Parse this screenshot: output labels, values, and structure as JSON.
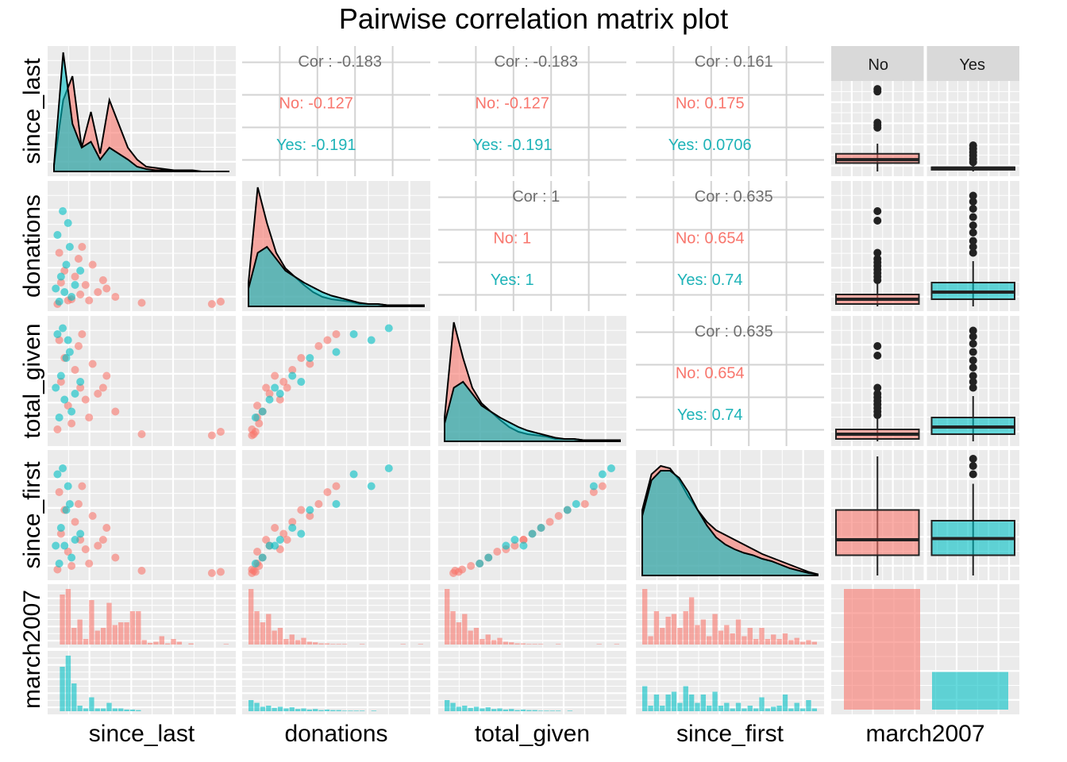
{
  "title": "Pairwise correlation matrix plot",
  "variables": [
    "since_last",
    "donations",
    "total_given",
    "since_first",
    "march2007"
  ],
  "colors": {
    "No": "#F8766D",
    "Yes": "#00BFC4",
    "panel_bg": "#EBEBEB",
    "grid": "#FFFFFF",
    "strip_bg": "#D9D9D9",
    "cor_text": "#6e6e6e"
  },
  "chart_data": {
    "type": "scatter",
    "title": "Pairwise correlation matrix plot",
    "groups": [
      "No",
      "Yes"
    ],
    "correlations": [
      {
        "row": "since_last",
        "col": "donations",
        "overall": "Cor : -0.183",
        "No": "No: -0.127",
        "Yes": "Yes: -0.191"
      },
      {
        "row": "since_last",
        "col": "total_given",
        "overall": "Cor : -0.183",
        "No": "No: -0.127",
        "Yes": "Yes: -0.191"
      },
      {
        "row": "since_last",
        "col": "since_first",
        "overall": "Cor : 0.161",
        "No": "No: 0.175",
        "Yes": "Yes: 0.0706"
      },
      {
        "row": "donations",
        "col": "total_given",
        "overall": "Cor : 1",
        "No": "No: 1",
        "Yes": "Yes: 1"
      },
      {
        "row": "donations",
        "col": "since_first",
        "overall": "Cor : 0.635",
        "No": "No: 0.654",
        "Yes": "Yes: 0.74"
      },
      {
        "row": "total_given",
        "col": "since_first",
        "overall": "Cor : 0.635",
        "No": "No: 0.654",
        "Yes": "Yes: 0.74"
      }
    ],
    "march2007_counts": {
      "No": 570,
      "Yes": 178
    },
    "boxplot_strip_labels": [
      "No",
      "Yes"
    ],
    "boxplots": {
      "since_last": {
        "No": {
          "q1": 0.1,
          "median": 0.14,
          "q3": 0.21,
          "whisker_low": 0.0,
          "whisker_high": 0.33,
          "outliers": [
            0.52,
            0.55,
            0.58,
            0.95,
            0.98
          ]
        },
        "Yes": {
          "q1": 0.02,
          "median": 0.04,
          "q3": 0.05,
          "whisker_low": 0.0,
          "whisker_high": 0.08,
          "outliers": [
            0.11,
            0.15,
            0.19,
            0.23,
            0.27,
            0.31
          ]
        }
      },
      "donations": {
        "No": {
          "q1": 0.02,
          "median": 0.06,
          "q3": 0.1,
          "whisker_low": 0.0,
          "whisker_high": 0.2,
          "outliers": [
            0.22,
            0.25,
            0.28,
            0.31,
            0.34,
            0.37,
            0.4,
            0.45,
            0.72,
            0.8
          ]
        },
        "Yes": {
          "q1": 0.06,
          "median": 0.12,
          "q3": 0.2,
          "whisker_low": 0.0,
          "whisker_high": 0.38,
          "outliers": [
            0.45,
            0.5,
            0.55,
            0.62,
            0.68,
            0.75,
            0.82,
            0.88,
            0.93
          ]
        }
      },
      "total_given": {
        "No": {
          "q1": 0.02,
          "median": 0.06,
          "q3": 0.1,
          "whisker_low": 0.0,
          "whisker_high": 0.2,
          "outliers": [
            0.22,
            0.25,
            0.28,
            0.31,
            0.34,
            0.37,
            0.4,
            0.45,
            0.72,
            0.8
          ]
        },
        "Yes": {
          "q1": 0.06,
          "median": 0.12,
          "q3": 0.2,
          "whisker_low": 0.0,
          "whisker_high": 0.38,
          "outliers": [
            0.45,
            0.5,
            0.55,
            0.62,
            0.68,
            0.75,
            0.82,
            0.88,
            0.93
          ]
        }
      },
      "since_first": {
        "No": {
          "q1": 0.17,
          "median": 0.3,
          "q3": 0.55,
          "whisker_low": 0.0,
          "whisker_high": 1.0,
          "outliers": []
        },
        "Yes": {
          "q1": 0.17,
          "median": 0.31,
          "q3": 0.46,
          "whisker_low": 0.0,
          "whisker_high": 0.77,
          "outliers": [
            0.85,
            0.92,
            0.98
          ]
        }
      }
    },
    "histograms": {
      "since_last": {
        "No": [
          0,
          0.9,
          1.0,
          0.3,
          0.45,
          0.1,
          0.8,
          0.25,
          0.3,
          0.75,
          0.35,
          0.4,
          0.4,
          0.6,
          0.6,
          0.08,
          0.03,
          0.05,
          0.15,
          0.02,
          0.1,
          0.05,
          0,
          0.02,
          0,
          0,
          0,
          0,
          0,
          0.01
        ],
        "Yes": [
          0,
          0.8,
          1.0,
          0.5,
          0.1,
          0.05,
          0.25,
          0.05,
          0.05,
          0.15,
          0.05,
          0.05,
          0.03,
          0.03,
          0.02,
          0,
          0,
          0,
          0,
          0,
          0,
          0,
          0,
          0,
          0,
          0,
          0,
          0,
          0,
          0
        ]
      },
      "donations": {
        "No": [
          1.0,
          0.6,
          0.4,
          0.55,
          0.25,
          0.3,
          0.1,
          0.18,
          0.08,
          0.12,
          0.05,
          0.04,
          0.02,
          0.02,
          0.01,
          0.01,
          0.01,
          0,
          0,
          0.01,
          0,
          0,
          0,
          0,
          0,
          0,
          0.01,
          0,
          0,
          0.01
        ],
        "Yes": [
          0.2,
          0.15,
          0.08,
          0.1,
          0.06,
          0.08,
          0.05,
          0.07,
          0.04,
          0.05,
          0.03,
          0.04,
          0.02,
          0.03,
          0.02,
          0.02,
          0.01,
          0.01,
          0.01,
          0.01,
          0,
          0.01,
          0,
          0,
          0,
          0,
          0,
          0,
          0,
          0
        ]
      },
      "total_given": {
        "No": [
          1.0,
          0.6,
          0.4,
          0.55,
          0.25,
          0.3,
          0.1,
          0.18,
          0.08,
          0.12,
          0.05,
          0.04,
          0.02,
          0.02,
          0.01,
          0.01,
          0.01,
          0,
          0,
          0.01,
          0,
          0,
          0,
          0,
          0,
          0,
          0.01,
          0,
          0,
          0.01
        ],
        "Yes": [
          0.2,
          0.15,
          0.08,
          0.1,
          0.06,
          0.08,
          0.05,
          0.07,
          0.04,
          0.05,
          0.03,
          0.04,
          0.02,
          0.03,
          0.02,
          0.02,
          0.01,
          0.01,
          0.01,
          0.01,
          0,
          0.01,
          0,
          0,
          0,
          0,
          0,
          0,
          0,
          0
        ]
      },
      "since_first": {
        "No": [
          1.0,
          0.15,
          0.6,
          0.3,
          0.5,
          0.55,
          0.3,
          0.6,
          0.85,
          0.35,
          0.45,
          0.15,
          0.55,
          0.25,
          0.35,
          0.2,
          0.45,
          0.15,
          0.3,
          0.1,
          0.3,
          0.1,
          0.18,
          0.1,
          0.2,
          0.08,
          0.12,
          0.05,
          0.08,
          0.05
        ],
        "Yes": [
          0.45,
          0.1,
          0.3,
          0.1,
          0.3,
          0.35,
          0.15,
          0.45,
          0.3,
          0.15,
          0.3,
          0.1,
          0.35,
          0.1,
          0.15,
          0.05,
          0.15,
          0.05,
          0.1,
          0.05,
          0.25,
          0.05,
          0.08,
          0.1,
          0.3,
          0.05,
          0.15,
          0.05,
          0.2,
          0.05
        ]
      }
    },
    "densities": {
      "since_last": {
        "No": [
          0.05,
          0.6,
          0.8,
          0.2,
          0.5,
          0.15,
          0.6,
          0.4,
          0.2,
          0.1,
          0.04,
          0.03,
          0.02,
          0.01,
          0.01,
          0.01,
          0,
          0,
          0,
          0
        ],
        "Yes": [
          0.05,
          1.0,
          0.4,
          0.2,
          0.25,
          0.1,
          0.2,
          0.15,
          0.1,
          0.04,
          0.02,
          0.01,
          0.01,
          0,
          0,
          0,
          0,
          0,
          0,
          0
        ]
      },
      "donations": {
        "No": [
          0.2,
          1.0,
          0.7,
          0.45,
          0.32,
          0.25,
          0.18,
          0.12,
          0.08,
          0.06,
          0.05,
          0.04,
          0.02,
          0.02,
          0.02,
          0.01,
          0.01,
          0.01,
          0.01,
          0.01
        ],
        "Yes": [
          0.15,
          0.45,
          0.5,
          0.4,
          0.3,
          0.25,
          0.2,
          0.16,
          0.12,
          0.09,
          0.07,
          0.05,
          0.03,
          0.02,
          0.02,
          0.01,
          0.01,
          0.01,
          0.01,
          0.01
        ]
      },
      "total_given": {
        "No": [
          0.2,
          1.0,
          0.7,
          0.45,
          0.32,
          0.25,
          0.18,
          0.12,
          0.08,
          0.06,
          0.05,
          0.04,
          0.02,
          0.02,
          0.02,
          0.01,
          0.01,
          0.01,
          0.01,
          0.01
        ],
        "Yes": [
          0.15,
          0.45,
          0.5,
          0.4,
          0.3,
          0.25,
          0.2,
          0.16,
          0.12,
          0.09,
          0.07,
          0.05,
          0.03,
          0.02,
          0.02,
          0.01,
          0.01,
          0.01,
          0.01,
          0.01
        ]
      },
      "since_first": {
        "No": [
          0.55,
          0.85,
          0.92,
          0.9,
          0.8,
          0.66,
          0.55,
          0.45,
          0.38,
          0.34,
          0.3,
          0.26,
          0.22,
          0.18,
          0.15,
          0.12,
          0.09,
          0.06,
          0.03,
          0.01
        ],
        "Yes": [
          0.5,
          0.8,
          0.88,
          0.88,
          0.82,
          0.7,
          0.55,
          0.42,
          0.32,
          0.26,
          0.22,
          0.19,
          0.17,
          0.14,
          0.12,
          0.09,
          0.06,
          0.04,
          0.02,
          0.01
        ]
      }
    },
    "scatter_points": {
      "No": [
        [
          0.02,
          0.02,
          0.1,
          0.05,
          0.12
        ],
        [
          0.08,
          0.05,
          0.3,
          0.2,
          0.4
        ],
        [
          0.15,
          0.1,
          0.45,
          0.3,
          0.6
        ],
        [
          0.2,
          0.05,
          0.2,
          0.1,
          0.3
        ],
        [
          0.3,
          0.15,
          0.55,
          0.4,
          0.7
        ],
        [
          0.35,
          0.08,
          0.25,
          0.15,
          0.35
        ],
        [
          0.04,
          0.2,
          0.5,
          0.35,
          0.65
        ],
        [
          0.12,
          0.25,
          0.6,
          0.45,
          0.75
        ],
        [
          0.25,
          0.12,
          0.4,
          0.25,
          0.55
        ],
        [
          0.06,
          0.3,
          0.7,
          0.55,
          0.85
        ],
        [
          0.1,
          0.06,
          0.15,
          0.08,
          0.2
        ],
        [
          0.18,
          0.18,
          0.35,
          0.22,
          0.5
        ],
        [
          0.9,
          0.02,
          0.05,
          0.02,
          0.05
        ],
        [
          0.95,
          0.04,
          0.08,
          0.03,
          0.08
        ],
        [
          0.5,
          0.03,
          0.06,
          0.04,
          0.1
        ],
        [
          0.14,
          0.4,
          0.8,
          0.6,
          0.9
        ],
        [
          0.22,
          0.35,
          0.65,
          0.5,
          0.8
        ],
        [
          0.03,
          0.45,
          0.85,
          0.7,
          0.95
        ],
        [
          0.28,
          0.22,
          0.45,
          0.3,
          0.6
        ],
        [
          0.16,
          0.5,
          0.9,
          0.75,
          0.98
        ]
      ],
      "Yes": [
        [
          0.03,
          0.04,
          0.2,
          0.1,
          0.25
        ],
        [
          0.06,
          0.12,
          0.35,
          0.25,
          0.45
        ],
        [
          0.04,
          0.25,
          0.55,
          0.4,
          0.7
        ],
        [
          0.1,
          0.08,
          0.25,
          0.15,
          0.3
        ],
        [
          0.02,
          0.6,
          0.9,
          0.85,
          0.98
        ],
        [
          0.07,
          0.35,
          0.7,
          0.55,
          0.85
        ],
        [
          0.12,
          0.18,
          0.4,
          0.3,
          0.5
        ],
        [
          0.05,
          0.8,
          0.95,
          0.9,
          0.98
        ],
        [
          0.09,
          0.5,
          0.75,
          0.6,
          0.82
        ],
        [
          0.15,
          0.3,
          0.5,
          0.35,
          0.6
        ],
        [
          0.01,
          0.15,
          0.45,
          0.25,
          0.55
        ],
        [
          0.08,
          0.7,
          0.85,
          0.75,
          0.92
        ]
      ]
    }
  }
}
